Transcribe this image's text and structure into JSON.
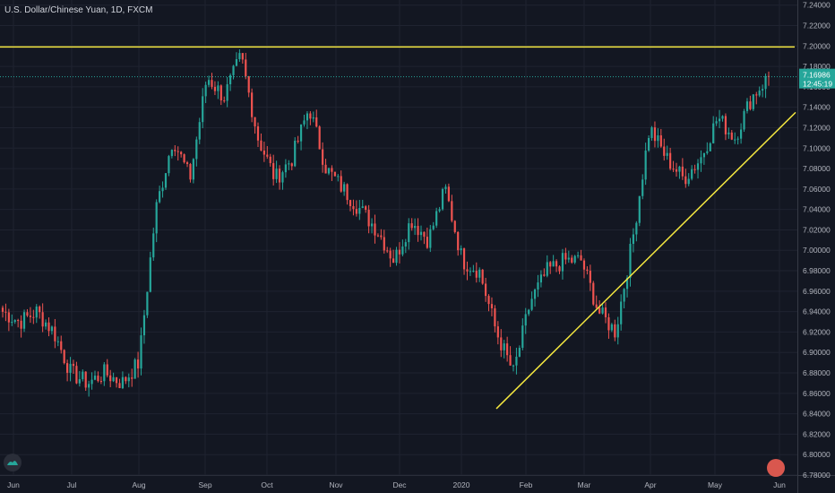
{
  "chart_data": {
    "type": "candlestick",
    "title": "U.S. Dollar/Chinese Yuan, 1D, FXCM",
    "x_tick_labels": [
      "Jun",
      "Jul",
      "Aug",
      "Sep",
      "Oct",
      "Nov",
      "Dec",
      "2020",
      "Feb",
      "Mar",
      "Apr",
      "May",
      "Jun"
    ],
    "y_tick_labels": [
      "6.78000",
      "6.80000",
      "6.82000",
      "6.84000",
      "6.86000",
      "6.88000",
      "6.90000",
      "6.92000",
      "6.94000",
      "6.96000",
      "6.98000",
      "7.00000",
      "7.02000",
      "7.04000",
      "7.06000",
      "7.08000",
      "7.10000",
      "7.12000",
      "7.14000",
      "7.16000",
      "7.18000",
      "7.20000",
      "7.22000",
      "7.24000"
    ],
    "ylim": [
      6.78,
      7.245
    ],
    "last_price": "7.16986",
    "countdown": "12:45:19",
    "price_series": [
      6.94,
      6.93,
      6.94,
      6.92,
      6.88,
      6.87,
      6.88,
      6.87,
      6.89,
      7.04,
      7.11,
      7.07,
      7.17,
      7.15,
      7.19,
      7.11,
      7.07,
      7.09,
      7.14,
      7.08,
      7.06,
      7.04,
      7.02,
      6.99,
      7.03,
      7.01,
      7.06,
      6.99,
      6.98,
      6.92,
      6.88,
      6.95,
      6.98,
      6.99,
      6.99,
      6.94,
      6.92,
      7.01,
      7.12,
      7.09,
      7.07,
      7.09,
      7.13,
      7.11,
      7.15,
      7.17
    ],
    "colors": {
      "up": "#26a69a",
      "down": "#ef5350",
      "trendline": "#f5e840",
      "price_tag": "#26a69a"
    },
    "grid": true,
    "annotations": [
      {
        "type": "horizontal-line",
        "price": 7.199
      },
      {
        "type": "trendline",
        "from": {
          "date": "2020-01-15",
          "price": 6.845
        },
        "to": {
          "date": "2020-05-31",
          "price": 7.135
        }
      }
    ]
  }
}
